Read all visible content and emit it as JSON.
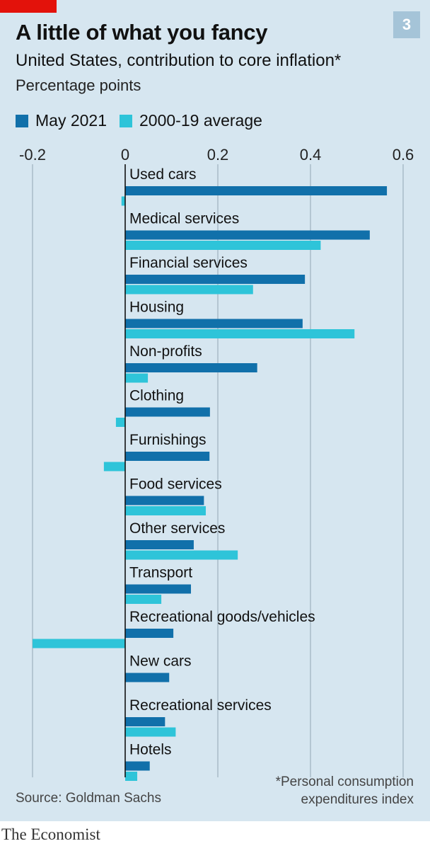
{
  "chart_number": "3",
  "title": "A little of what you fancy",
  "subtitle": "United States, contribution to core inflation*",
  "unit": "Percentage points",
  "source": "Source: Goldman Sachs",
  "footnote_line1": "*Personal consumption",
  "footnote_line2": "expenditures index",
  "brand": "The Economist",
  "colors": {
    "background": "#d6e6f0",
    "accent_red": "#e3120b",
    "may_2021": "#1170aa",
    "average_2000_19": "#2ec4d9",
    "gridline": "#9eb1bf"
  },
  "chart_data": {
    "type": "bar",
    "orientation": "horizontal",
    "xlim": [
      -0.2,
      0.6
    ],
    "xticks": [
      "-0.2",
      "0",
      "0.2",
      "0.4",
      "0.6"
    ],
    "xtick_values": [
      -0.2,
      0,
      0.2,
      0.4,
      0.6
    ],
    "grid": true,
    "legend_position": "top-left",
    "categories": [
      "Used cars",
      "Medical services",
      "Financial services",
      "Housing",
      "Non-profits",
      "Clothing",
      "Furnishings",
      "Food services",
      "Other services",
      "Transport",
      "Recreational goods/vehicles",
      "New cars",
      "Recreational services",
      "Hotels"
    ],
    "series": [
      {
        "name": "May 2021",
        "color": "#1170aa",
        "values": [
          0.565,
          0.528,
          0.388,
          0.383,
          0.285,
          0.183,
          0.182,
          0.17,
          0.148,
          0.142,
          0.104,
          0.095,
          0.086,
          0.053
        ]
      },
      {
        "name": "2000-19 average",
        "color": "#2ec4d9",
        "values": [
          -0.008,
          0.422,
          0.276,
          0.495,
          0.049,
          -0.02,
          -0.046,
          0.174,
          0.243,
          0.078,
          -0.2,
          0.0,
          0.109,
          0.026
        ]
      }
    ]
  }
}
